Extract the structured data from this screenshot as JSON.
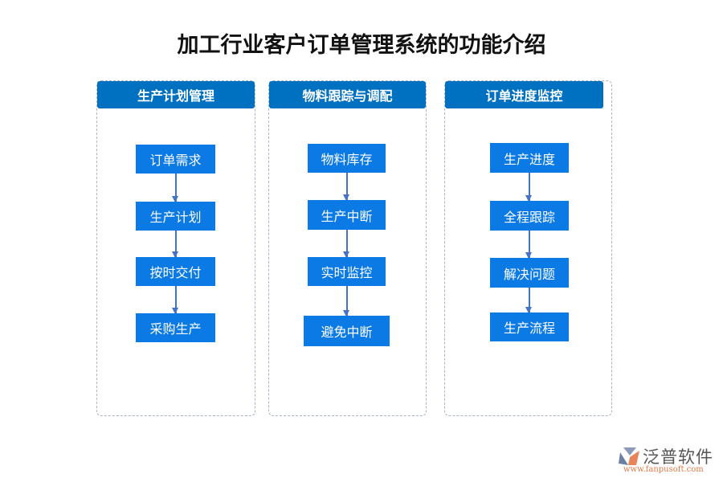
{
  "title": "加工行业客户订单管理系统的功能介绍",
  "columns": [
    {
      "header": "生产计划管理",
      "items": [
        "订单需求",
        "生产计划",
        "按时交付",
        "采购生产"
      ]
    },
    {
      "header": "物料跟踪与调配",
      "items": [
        "物料库存",
        "生产中断",
        "实时监控",
        "避免中断"
      ]
    },
    {
      "header": "订单进度监控",
      "items": [
        "生产进度",
        "全程跟踪",
        "解决问题",
        "生产流程"
      ]
    }
  ],
  "logo": {
    "name": "泛普软件",
    "url": "www.fanpusoft.com"
  },
  "colors": {
    "header": "#0070c0",
    "box": "#0b7ae4",
    "arrow": "#4472c4"
  }
}
